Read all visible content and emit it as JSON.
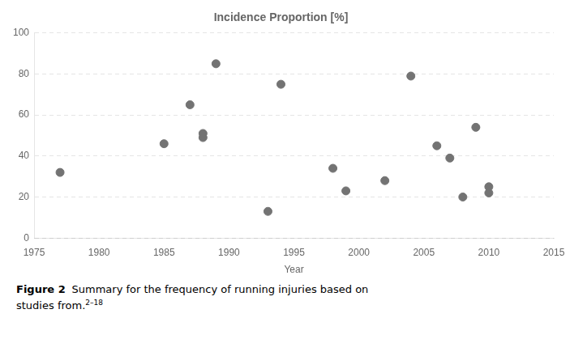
{
  "chart_data": {
    "type": "scatter",
    "title": "Incidence Proportion [%]",
    "xlabel": "Year",
    "x": [
      1977,
      1985,
      1987,
      1988,
      1988,
      1989,
      1993,
      1994,
      1998,
      1999,
      2002,
      2004,
      2006,
      2007,
      2008,
      2009,
      2010,
      2010
    ],
    "values": [
      32,
      46,
      65,
      49,
      51,
      85,
      13,
      75,
      34,
      23,
      28,
      79,
      45,
      39,
      20,
      54,
      22,
      25
    ],
    "color": "#737373",
    "xlim": [
      1975,
      2015
    ],
    "ylim": [
      0,
      100
    ],
    "xticks": [
      1975,
      1980,
      1985,
      1990,
      1995,
      2000,
      2005,
      2010,
      2015
    ],
    "yticks": [
      0,
      20,
      40,
      60,
      80,
      100
    ],
    "grid": true,
    "annotations": [
      "Figure 2",
      "Summary for the frequency of running injuries based on",
      "studies from.",
      "2–18"
    ]
  }
}
